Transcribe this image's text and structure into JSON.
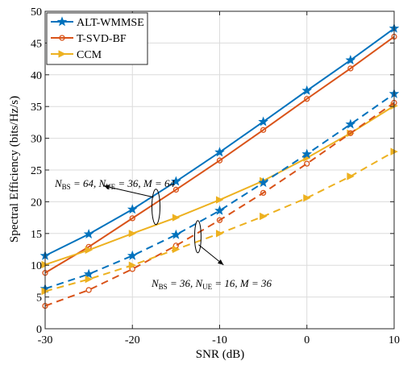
{
  "chart_data": {
    "type": "line",
    "xlabel": "SNR (dB)",
    "ylabel": "Spectral Efficiency (bits/Hz/s)",
    "xlim": [
      -30,
      10
    ],
    "ylim": [
      0,
      50
    ],
    "xticks": [
      -30,
      -20,
      -10,
      0,
      10
    ],
    "yticks": [
      0,
      5,
      10,
      15,
      20,
      25,
      30,
      35,
      40,
      45,
      50
    ],
    "xtick_labels": [
      "-30",
      "-20",
      "-10",
      "0",
      "10"
    ],
    "ytick_labels": [
      "0",
      "5",
      "10",
      "15",
      "20",
      "25",
      "30",
      "35",
      "40",
      "45",
      "50"
    ],
    "grid": true,
    "legend_position": "top-left",
    "x": [
      -30,
      -25,
      -20,
      -15,
      -10,
      -5,
      0,
      5,
      10
    ],
    "series": [
      {
        "name": "ALT-WMMSE",
        "config": "upper",
        "style": "solid",
        "marker": "star",
        "color": "#0072BD",
        "values": [
          11.5,
          14.9,
          18.8,
          23.2,
          27.8,
          32.6,
          37.5,
          42.3,
          47.3
        ]
      },
      {
        "name": "T-SVD-BF",
        "config": "upper",
        "style": "solid",
        "marker": "circle",
        "color": "#D95319",
        "values": [
          8.8,
          12.9,
          17.4,
          21.9,
          26.5,
          31.3,
          36.2,
          41.0,
          46.0
        ]
      },
      {
        "name": "CCM",
        "config": "upper",
        "style": "solid",
        "marker": "triangle-right",
        "color": "#EDB120",
        "values": [
          10.1,
          12.4,
          15.0,
          17.5,
          20.3,
          23.3,
          26.9,
          30.8,
          35.1
        ]
      },
      {
        "name": "ALT-WMMSE",
        "config": "lower",
        "style": "dashed",
        "marker": "star",
        "color": "#0072BD",
        "values": [
          6.3,
          8.6,
          11.5,
          14.8,
          18.6,
          23.0,
          27.5,
          32.2,
          37.0
        ]
      },
      {
        "name": "T-SVD-BF",
        "config": "lower",
        "style": "dashed",
        "marker": "circle",
        "color": "#D95319",
        "values": [
          3.6,
          6.1,
          9.4,
          13.1,
          17.1,
          21.4,
          26.0,
          30.8,
          35.6
        ]
      },
      {
        "name": "CCM",
        "config": "lower",
        "style": "dashed",
        "marker": "triangle-right",
        "color": "#EDB120",
        "values": [
          5.9,
          7.8,
          10.0,
          12.5,
          15.0,
          17.7,
          20.6,
          24.0,
          27.9
        ]
      }
    ],
    "legend": [
      "ALT-WMMSE",
      "T-SVD-BF",
      "CCM"
    ],
    "annotations": [
      {
        "id": "upper",
        "text": "N_BS = 64, N_UE = 36, M = 64",
        "nbs": "64",
        "nue": "36",
        "m": "64",
        "ellipse_center": [
          -17.3,
          19.2
        ],
        "arrow_tip": [
          -22.0,
          21.5
        ]
      },
      {
        "id": "lower",
        "text": "N_BS = 36, N_UE = 16, M = 36",
        "nbs": "36",
        "nue": "16",
        "m": "36",
        "ellipse_center": [
          -12.5,
          14.5
        ],
        "arrow_tip": [
          -9.0,
          9.8
        ]
      }
    ]
  }
}
